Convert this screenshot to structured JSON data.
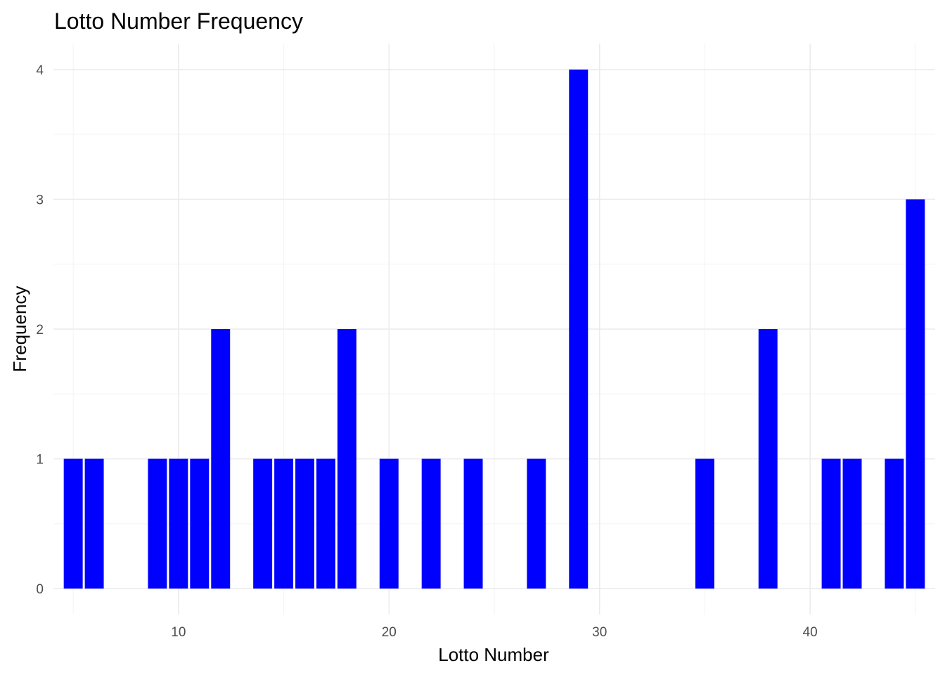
{
  "chart_data": {
    "type": "bar",
    "title": "Lotto Number Frequency",
    "xlabel": "Lotto Number",
    "ylabel": "Frequency",
    "x": [
      5,
      6,
      9,
      10,
      11,
      12,
      14,
      15,
      16,
      17,
      18,
      20,
      22,
      24,
      27,
      29,
      35,
      38,
      41,
      42,
      44,
      45
    ],
    "values": [
      1,
      1,
      1,
      1,
      1,
      2,
      1,
      1,
      1,
      1,
      2,
      1,
      1,
      1,
      1,
      4,
      1,
      2,
      1,
      1,
      1,
      3
    ],
    "xlim": [
      4.06,
      45.94
    ],
    "ylim": [
      -0.2,
      4.2
    ],
    "x_ticks": [
      10,
      20,
      30,
      40
    ],
    "y_ticks": [
      0,
      1,
      2,
      3,
      4
    ],
    "bar_color": "#0000ff",
    "grid": true,
    "legend": "none"
  }
}
